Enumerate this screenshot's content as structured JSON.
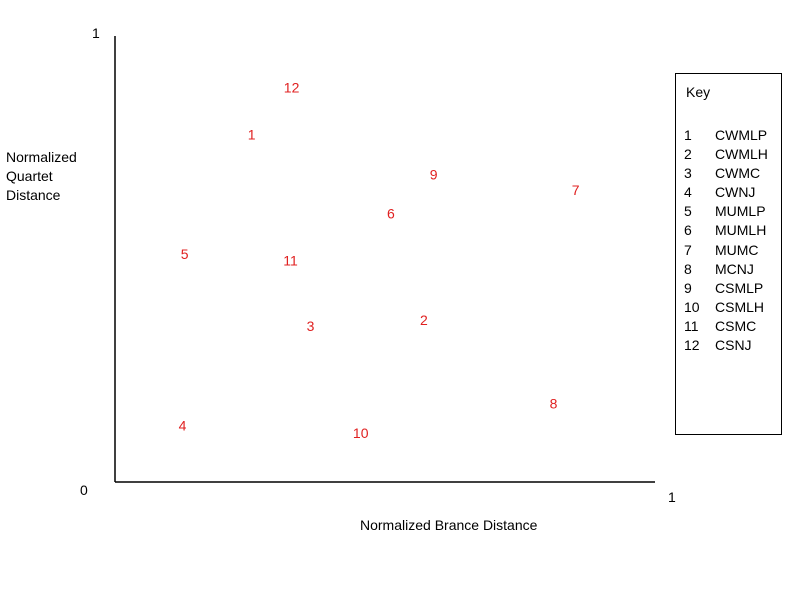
{
  "chart_data": {
    "type": "scatter",
    "title": "",
    "xlabel": "Normalized Brance Distance",
    "ylabel_lines": [
      "Normalized",
      "Quartet",
      "Distance"
    ],
    "xlim": [
      0,
      1
    ],
    "ylim": [
      0,
      1
    ],
    "x_tick_labels": [
      "1"
    ],
    "y_tick_labels": [
      "0",
      "1"
    ],
    "grid": false,
    "point_color": "#e02020",
    "points": [
      {
        "label": "1",
        "x": 0.253,
        "y": 0.779
      },
      {
        "label": "2",
        "x": 0.572,
        "y": 0.363
      },
      {
        "label": "3",
        "x": 0.362,
        "y": 0.35
      },
      {
        "label": "4",
        "x": 0.125,
        "y": 0.127
      },
      {
        "label": "5",
        "x": 0.129,
        "y": 0.511
      },
      {
        "label": "6",
        "x": 0.511,
        "y": 0.602
      },
      {
        "label": "7",
        "x": 0.853,
        "y": 0.655
      },
      {
        "label": "8",
        "x": 0.812,
        "y": 0.176
      },
      {
        "label": "9",
        "x": 0.59,
        "y": 0.689
      },
      {
        "label": "10",
        "x": 0.455,
        "y": 0.11
      },
      {
        "label": "11",
        "x": 0.325,
        "y": 0.497
      },
      {
        "label": "12",
        "x": 0.327,
        "y": 0.884
      }
    ],
    "legend": {
      "title": "Key",
      "placement": "right",
      "entries": [
        {
          "num": "1",
          "name": "CWMLP"
        },
        {
          "num": "2",
          "name": "CWMLH"
        },
        {
          "num": "3",
          "name": "CWMC"
        },
        {
          "num": "4",
          "name": "CWNJ"
        },
        {
          "num": "5",
          "name": "MUMLP"
        },
        {
          "num": "6",
          "name": "MUMLH"
        },
        {
          "num": "7",
          "name": "MUMC"
        },
        {
          "num": "8",
          "name": "MCNJ"
        },
        {
          "num": "9",
          "name": "CSMLP"
        },
        {
          "num": "10",
          "name": "CSMLH"
        },
        {
          "num": "11",
          "name": "CSMC"
        },
        {
          "num": "12",
          "name": "CSNJ"
        }
      ]
    }
  }
}
